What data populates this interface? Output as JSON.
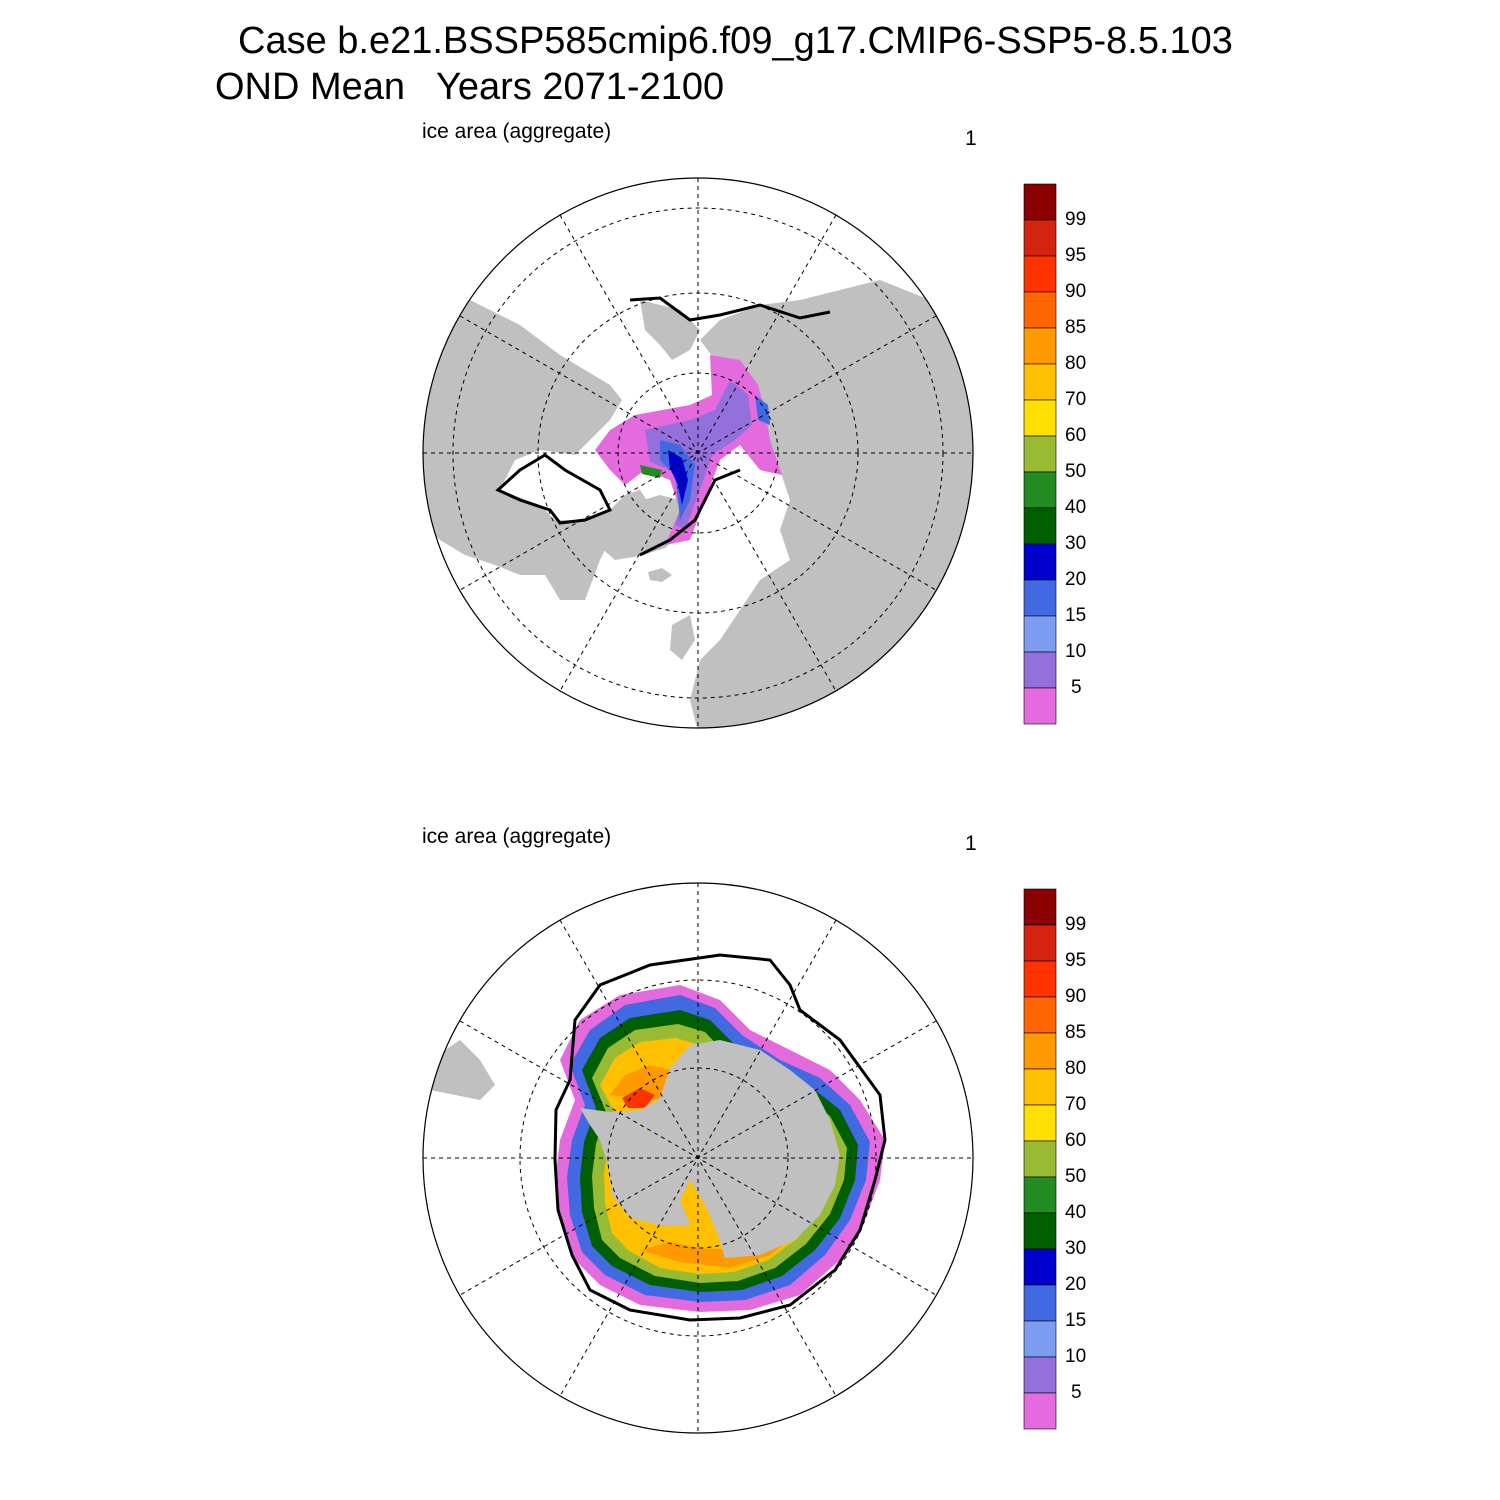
{
  "header": {
    "title_line1": "Case b.e21.BSSP585cmip6.f09_g17.CMIP6-SSP5-8.5.103",
    "title_line2": "OND Mean   Years 2071-2100"
  },
  "panels": [
    {
      "id": "north",
      "hemisphere": "Arctic",
      "title": "ice area  (aggregate)",
      "corner_label": "1"
    },
    {
      "id": "south",
      "hemisphere": "Antarctic",
      "title": "ice area  (aggregate)",
      "corner_label": "1"
    }
  ],
  "colorbar": {
    "labels": [
      "99",
      "95",
      "90",
      "85",
      "80",
      "70",
      "60",
      "50",
      "40",
      "30",
      "20",
      "15",
      "10",
      "5"
    ],
    "colors": [
      "#8b0000",
      "#d4230f",
      "#ff3300",
      "#ff6600",
      "#ff9900",
      "#ffc000",
      "#ffe000",
      "#99bb33",
      "#228b22",
      "#005f00",
      "#0000cd",
      "#4169e1",
      "#7b9cf0",
      "#9370db",
      "#e36bde"
    ]
  },
  "map_colors": {
    "land": "#c0c0c0",
    "ocean": "#ffffff",
    "ice_edge_line": "#000000"
  }
}
